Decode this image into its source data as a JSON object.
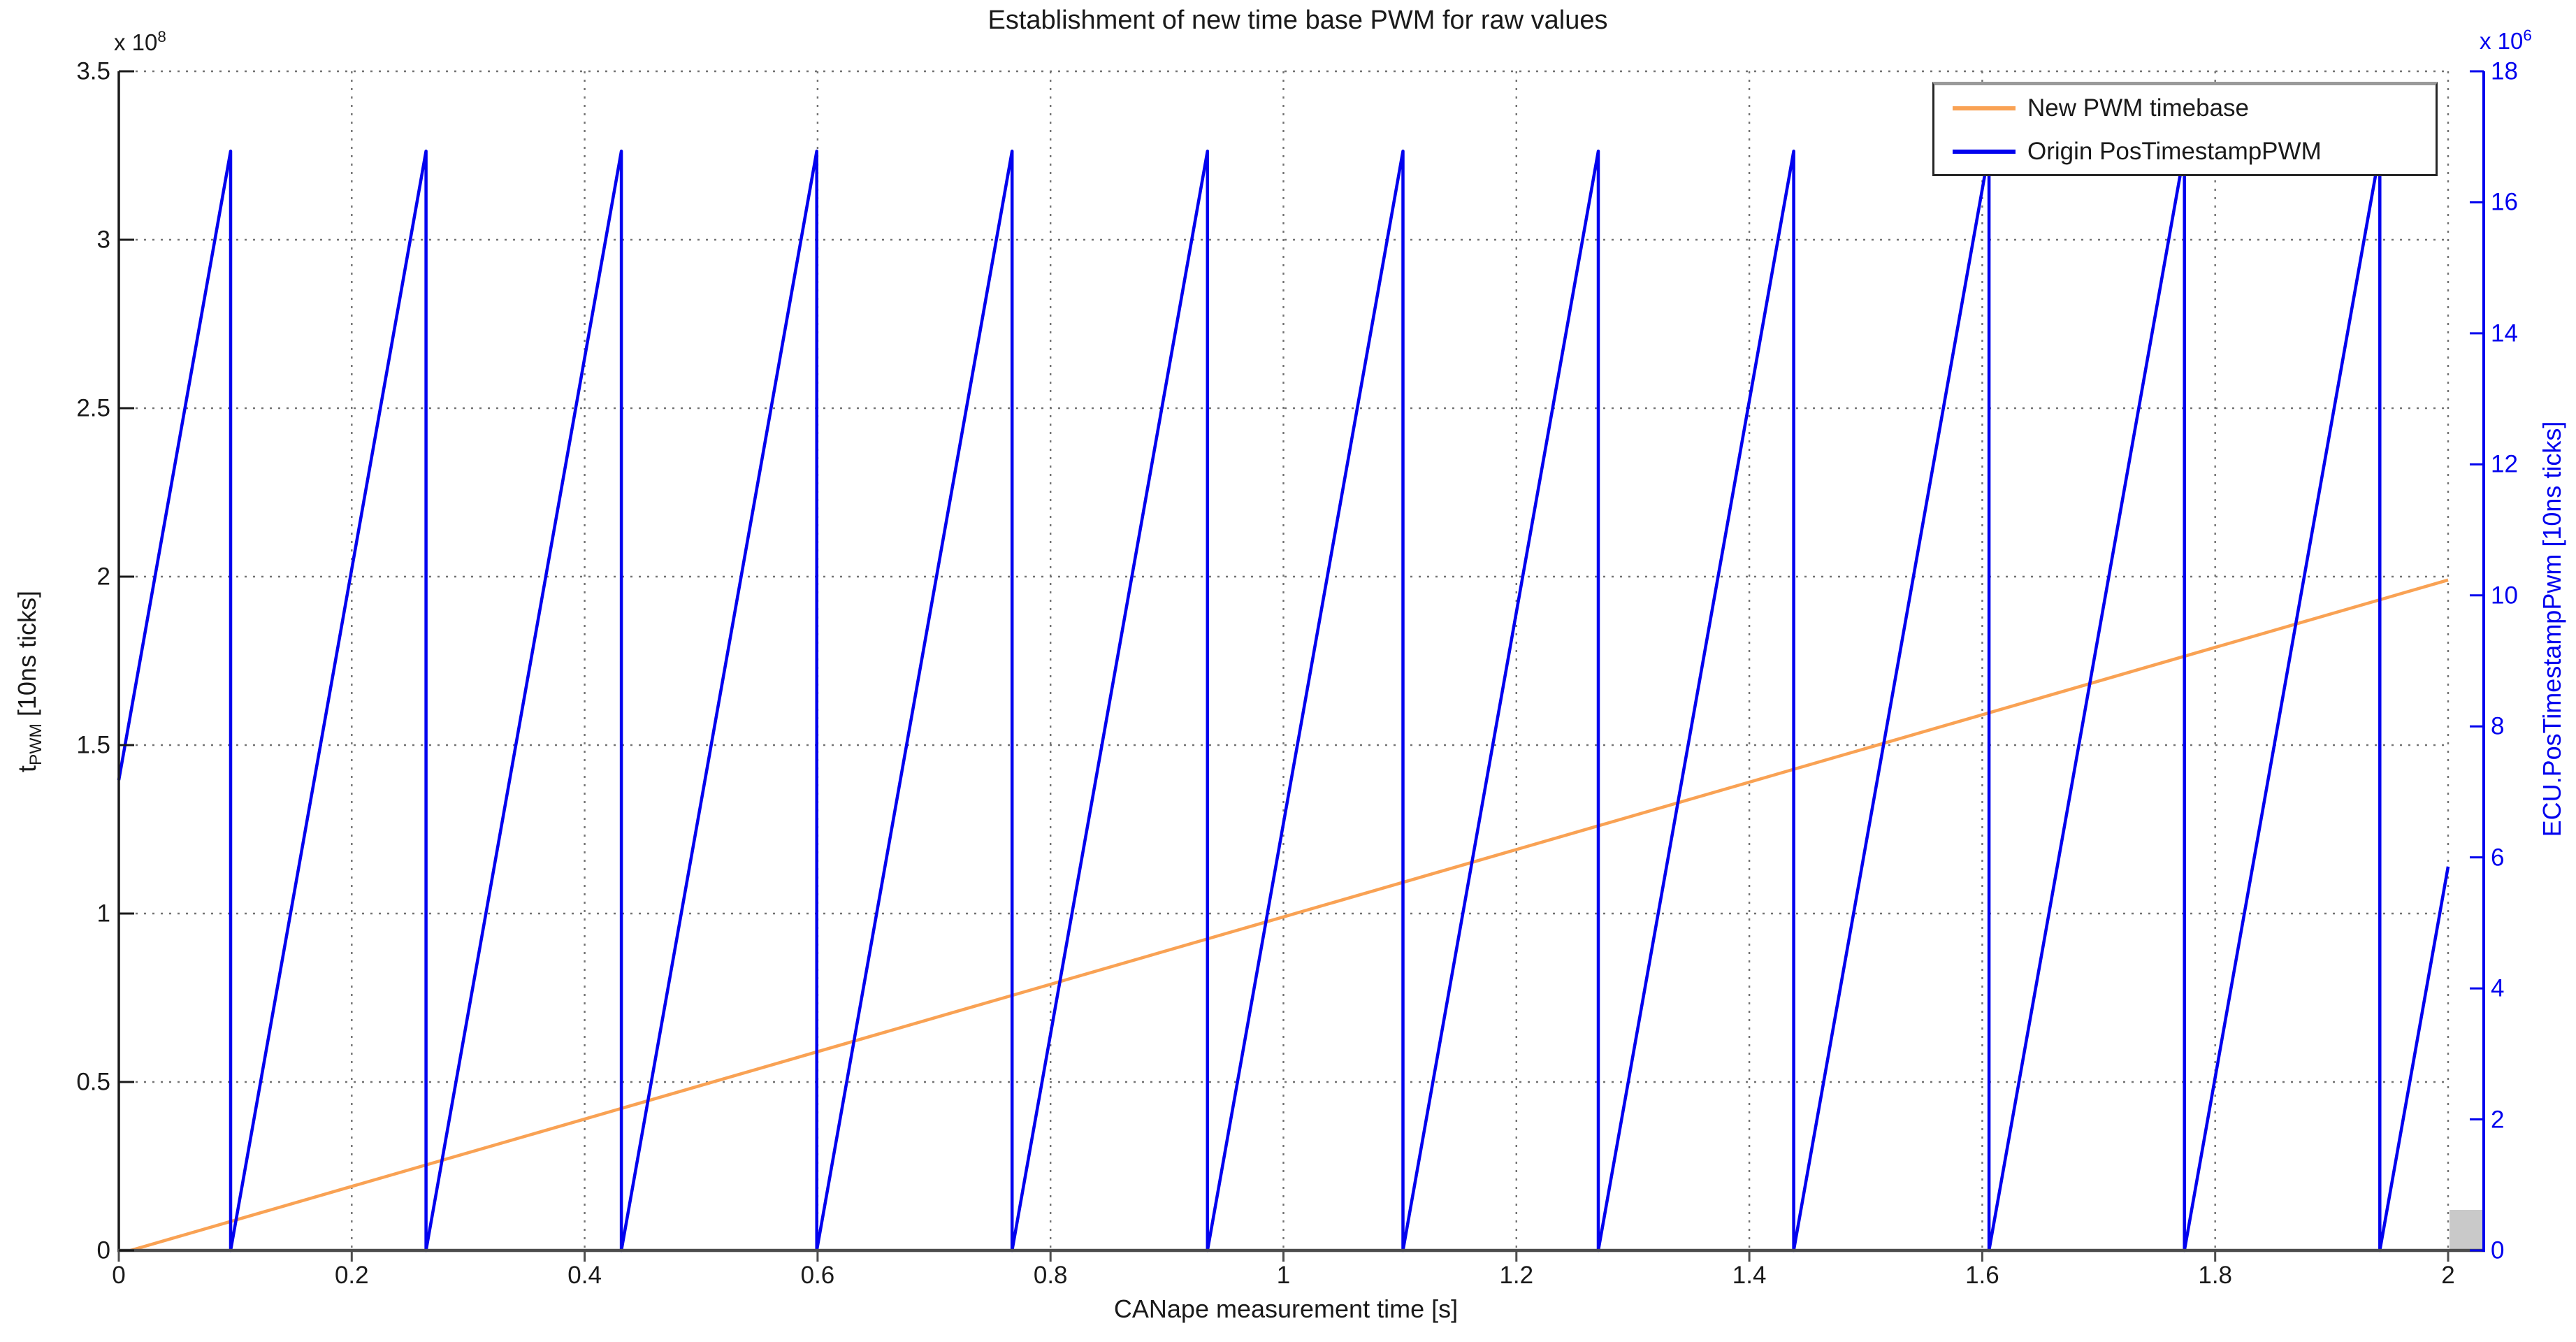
{
  "figure": {
    "title": "Establishment of new time base PWM for raw values",
    "x_label": "CANape measurement time [s]",
    "y_left_label_pre": "t",
    "y_left_label_sub": "PWM",
    "y_left_label_post": " [10ns ticks]",
    "y_right_label": "ECU.PosTimestampPwm [10ns ticks]",
    "y_left_exponent_prefix": "x 10",
    "y_left_exponent": "8",
    "y_right_exponent_prefix": "x 10",
    "y_right_exponent": "6"
  },
  "legend": {
    "items": [
      {
        "label": "New PWM timebase",
        "color": "#F9A254"
      },
      {
        "label": "Origin PosTimestampPWM",
        "color": "#0202EE"
      }
    ]
  },
  "colors": {
    "series_new_pwm": "#F9A254",
    "series_origin": "#0202EE",
    "grid": "#737373",
    "axis_left": "#1a1a1a",
    "axis_bottom": "#4d4d4d",
    "axis_right": "#0202EE",
    "artifact_box": "#c9c9c9"
  },
  "chart_data": {
    "type": "line",
    "title": "Establishment of new time base PWM for raw values",
    "xlabel": "CANape measurement time [s]",
    "ylabel_left": "t_PWM [10ns ticks]",
    "ylabel_right": "ECU.PosTimestampPwm [10ns ticks]",
    "grid": true,
    "legend_position": "top-right-inside",
    "axes": {
      "x": {
        "min": 0,
        "max": 2,
        "ticks": [
          0,
          0.2,
          0.4,
          0.6,
          0.8,
          1,
          1.2,
          1.4,
          1.6,
          1.8,
          2
        ],
        "tick_labels": [
          "0",
          "0.2",
          "0.4",
          "0.6",
          "0.8",
          "1",
          "1.2",
          "1.4",
          "1.6",
          "1.8",
          "2"
        ]
      },
      "y_left": {
        "min": 0,
        "max": 3.5,
        "scale_exponent": "1e8",
        "ticks": [
          0,
          0.5,
          1,
          1.5,
          2,
          2.5,
          3,
          3.5
        ],
        "tick_labels": [
          "0",
          "0.5",
          "1",
          "1.5",
          "2",
          "2.5",
          "3",
          "3.5"
        ]
      },
      "y_right": {
        "min": 0,
        "max": 18,
        "scale_exponent": "1e6",
        "ticks": [
          0,
          2,
          4,
          6,
          8,
          10,
          12,
          14,
          16,
          18
        ],
        "tick_labels": [
          "0",
          "2",
          "4",
          "6",
          "8",
          "10",
          "12",
          "14",
          "16",
          "18"
        ]
      }
    },
    "series": [
      {
        "name": "New PWM timebase",
        "axis": "left",
        "color": "#F9A254",
        "points": [
          [
            0.01,
            0
          ],
          [
            2,
            1.99
          ]
        ]
      },
      {
        "name": "Origin PosTimestampPWM",
        "axis": "right",
        "color": "#0202EE",
        "points": [
          [
            0,
            7.18
          ],
          [
            0.096,
            16.78
          ],
          [
            0.096,
            0
          ],
          [
            0.2638,
            16.78
          ],
          [
            0.2638,
            0
          ],
          [
            0.4315,
            16.78
          ],
          [
            0.4315,
            0
          ],
          [
            0.5993,
            16.78
          ],
          [
            0.5993,
            0
          ],
          [
            0.767,
            16.78
          ],
          [
            0.767,
            0
          ],
          [
            0.9348,
            16.78
          ],
          [
            0.9348,
            0
          ],
          [
            1.1026,
            16.78
          ],
          [
            1.1026,
            0
          ],
          [
            1.2703,
            16.78
          ],
          [
            1.2703,
            0
          ],
          [
            1.4381,
            16.78
          ],
          [
            1.4381,
            0
          ],
          [
            1.6058,
            16.78
          ],
          [
            1.6058,
            0
          ],
          [
            1.7736,
            16.78
          ],
          [
            1.7736,
            0
          ],
          [
            1.9414,
            16.78
          ],
          [
            1.9414,
            0
          ],
          [
            2,
            5.86
          ]
        ]
      }
    ],
    "annotations": {
      "gray_artifact_box": "small gray rectangle at bottom-right between x=2 gridline and right axis"
    }
  }
}
